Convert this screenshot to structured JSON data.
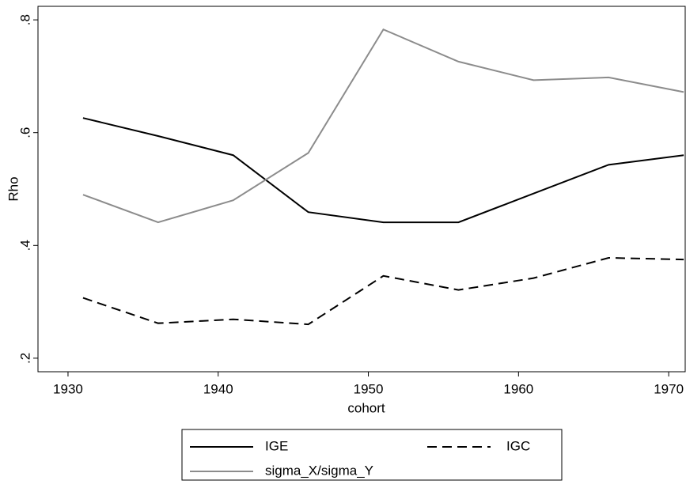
{
  "chart_data": {
    "type": "line",
    "x_label": "cohort",
    "y_label": "Rho",
    "x": [
      1931,
      1936,
      1941,
      1946,
      1951,
      1956,
      1961,
      1966,
      1971
    ],
    "series": [
      {
        "name": "IGE",
        "color": "#000000",
        "dash": false,
        "values": [
          0.626,
          0.594,
          0.56,
          0.459,
          0.441,
          0.441,
          0.492,
          0.543,
          0.56
        ]
      },
      {
        "name": "IGC",
        "color": "#000000",
        "dash": true,
        "values": [
          0.307,
          0.262,
          0.269,
          0.26,
          0.346,
          0.321,
          0.342,
          0.378,
          0.375
        ]
      },
      {
        "name": "sigma_X/sigma_Y",
        "color": "#8c8c8c",
        "dash": false,
        "values": [
          0.49,
          0.441,
          0.48,
          0.564,
          0.783,
          0.726,
          0.693,
          0.698,
          0.672
        ]
      }
    ],
    "xlim": [
      1928,
      1971.1
    ],
    "xticks": [
      1930,
      1940,
      1950,
      1960,
      1970
    ],
    "ylim": [
      0.176,
      0.824
    ],
    "yticks": [
      {
        "value": 0.2,
        "label": ".2"
      },
      {
        "value": 0.4,
        "label": ".4"
      },
      {
        "value": 0.6,
        "label": ".6"
      },
      {
        "value": 0.8,
        "label": ".8"
      }
    ],
    "grid": false,
    "legend": "bottom"
  }
}
